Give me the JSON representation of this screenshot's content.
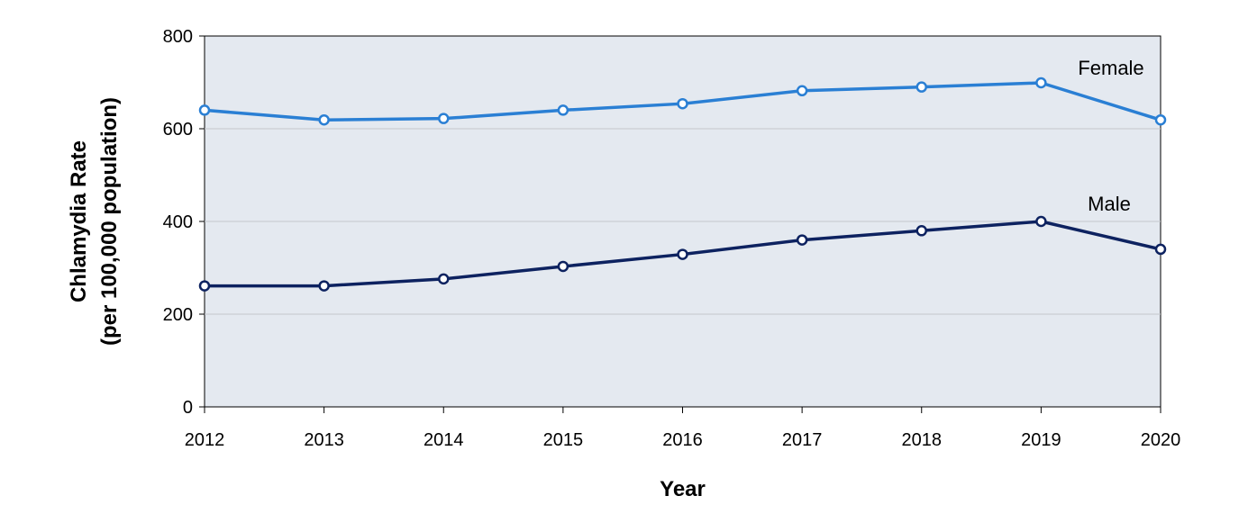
{
  "chart_data": {
    "type": "line",
    "x": [
      2012,
      2013,
      2014,
      2015,
      2016,
      2017,
      2018,
      2019,
      2020
    ],
    "xlabel": "Year",
    "ylabel_lines": [
      "Chlamydia Rate",
      "(per 100,000 population)"
    ],
    "ylim": [
      0,
      800
    ],
    "yticks": [
      0,
      200,
      400,
      600,
      800
    ],
    "grid": true,
    "legend": "inline labels",
    "plot_background": "#e4e9f0",
    "series": [
      {
        "name": "Female",
        "color": "#2a7fd4",
        "values": [
          640,
          619,
          622,
          640,
          654,
          682,
          690,
          699,
          619
        ]
      },
      {
        "name": "Male",
        "color": "#0d2260",
        "values": [
          261,
          261,
          276,
          303,
          329,
          360,
          380,
          400,
          340
        ]
      }
    ]
  }
}
